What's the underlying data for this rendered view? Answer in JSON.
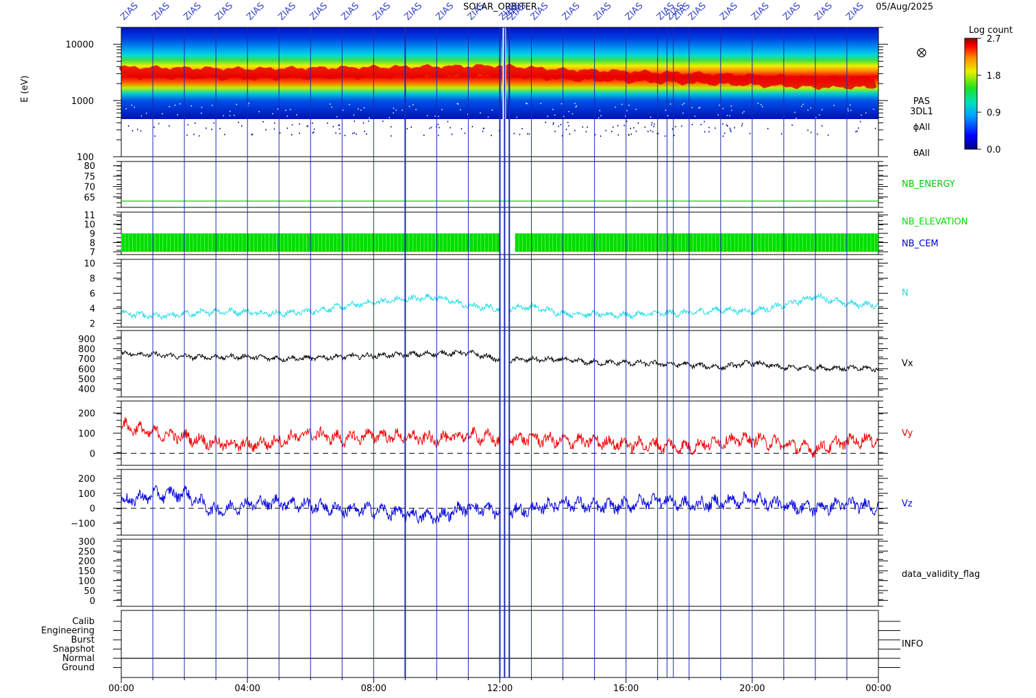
{
  "header": {
    "title": "SOLAR_ORBITER",
    "date": "05/Aug/2025",
    "event_label": "ZIAS",
    "event_times_hours": [
      0.0,
      1.0,
      2.0,
      3.0,
      4.0,
      5.0,
      6.0,
      7.0,
      8.0,
      9.0,
      10.0,
      11.0,
      12.0,
      12.15,
      12.3,
      13.0,
      14.0,
      15.0,
      16.0,
      17.0,
      17.3,
      17.5,
      18.0,
      19.0,
      20.0,
      21.0,
      22.0,
      23.0
    ]
  },
  "colorbar": {
    "title": "Log count",
    "ticks": [
      "2.7",
      "1.8",
      "0.9",
      "0.0"
    ],
    "min": 0.0,
    "max": 2.7
  },
  "xaxis": {
    "ticks": [
      "00:00",
      "04:00",
      "08:00",
      "12:00",
      "16:00",
      "20:00",
      "00:00"
    ],
    "range_hours": [
      0,
      24
    ]
  },
  "chart_data": [
    {
      "type": "heatmap",
      "panel": "spectrogram",
      "ylabel": "E (eV)",
      "yscale": "log",
      "ylim": [
        100,
        20000
      ],
      "yticks": [
        "10000",
        "1000",
        "100"
      ],
      "right_labels": [
        "PAS",
        "3DL1",
        "ϕAll",
        "θAll"
      ],
      "peak_energy_ev_by_hour": {
        "x": [
          0,
          2,
          4,
          6,
          8,
          10,
          12,
          14,
          16,
          18,
          20,
          22,
          24
        ],
        "y": [
          3200,
          3100,
          3000,
          3100,
          3200,
          3300,
          3400,
          2900,
          2700,
          2500,
          2300,
          2100,
          2100
        ]
      },
      "data_gaps_hours": [
        [
          12.0,
          12.25
        ]
      ]
    },
    {
      "type": "line",
      "panel": "nb_energy",
      "series": [
        {
          "name": "NB_ENERGY",
          "color": "#00cc00",
          "x": [
            0,
            24
          ],
          "y": [
            63,
            63
          ]
        }
      ],
      "yticks": [
        "80",
        "75",
        "70",
        "65"
      ],
      "ylim": [
        60,
        82
      ]
    },
    {
      "type": "line",
      "panel": "nb_elevation",
      "series": [
        {
          "name": "NB_ELEVATION",
          "color": "#00dd00",
          "min": 7,
          "max": 9
        },
        {
          "name": "NB_CEM",
          "color": "#0000cc"
        }
      ],
      "yticks": [
        "11",
        "10",
        "9",
        "8",
        "7"
      ],
      "ylim": [
        6.7,
        11.3
      ]
    },
    {
      "type": "line",
      "panel": "density",
      "series": [
        {
          "name": "N",
          "color": "#22dde8",
          "x": [
            0,
            1,
            2,
            3,
            4,
            5,
            6,
            7,
            8,
            9,
            10,
            11,
            12,
            13,
            14,
            15,
            16,
            17,
            18,
            19,
            20,
            21,
            22,
            23,
            24
          ],
          "y": [
            3.4,
            2.9,
            3.2,
            3.6,
            3.5,
            3.3,
            3.6,
            4.2,
            4.8,
            5.2,
            5.5,
            4.3,
            4.0,
            4.2,
            3.3,
            3.2,
            3.1,
            3.3,
            3.4,
            3.8,
            3.6,
            4.4,
            5.6,
            4.6,
            4.4
          ]
        }
      ],
      "yticks": [
        "10",
        "8",
        "6",
        "4",
        "2"
      ],
      "ylim": [
        1.5,
        10.5
      ]
    },
    {
      "type": "line",
      "panel": "vx",
      "series": [
        {
          "name": "Vx",
          "color": "#000000",
          "x": [
            0,
            1,
            2,
            3,
            4,
            5,
            6,
            7,
            8,
            9,
            10,
            11,
            12,
            13,
            14,
            15,
            16,
            17,
            18,
            19,
            20,
            21,
            22,
            23,
            24
          ],
          "y": [
            755,
            740,
            720,
            715,
            720,
            700,
            705,
            720,
            730,
            740,
            750,
            760,
            690,
            690,
            690,
            660,
            660,
            650,
            640,
            615,
            660,
            610,
            610,
            605,
            600
          ]
        }
      ],
      "yticks": [
        "900",
        "800",
        "700",
        "600",
        "500",
        "400"
      ],
      "ylim": [
        320,
        980
      ]
    },
    {
      "type": "line",
      "panel": "vy",
      "series": [
        {
          "name": "Vy",
          "color": "#ee0000",
          "x": [
            0,
            1,
            2,
            3,
            4,
            5,
            6,
            7,
            8,
            9,
            10,
            11,
            12,
            13,
            14,
            15,
            16,
            17,
            18,
            19,
            20,
            21,
            22,
            23,
            24
          ],
          "y": [
            140,
            100,
            80,
            50,
            40,
            60,
            100,
            70,
            90,
            80,
            70,
            90,
            70,
            75,
            60,
            60,
            45,
            40,
            30,
            60,
            70,
            45,
            20,
            60,
            70
          ]
        }
      ],
      "yticks": [
        "200",
        "100",
        "0"
      ],
      "ylim": [
        -60,
        260
      ],
      "reference_line": 0
    },
    {
      "type": "line",
      "panel": "vz",
      "series": [
        {
          "name": "Vz",
          "color": "#0000dd",
          "x": [
            0,
            1,
            2,
            3,
            4,
            5,
            6,
            7,
            8,
            9,
            10,
            11,
            12,
            13,
            14,
            15,
            16,
            17,
            18,
            19,
            20,
            21,
            22,
            23,
            24
          ],
          "y": [
            40,
            90,
            100,
            -20,
            30,
            40,
            20,
            -10,
            -10,
            -40,
            -60,
            10,
            -20,
            -10,
            40,
            10,
            20,
            60,
            20,
            40,
            60,
            20,
            0,
            30,
            10
          ]
        }
      ],
      "yticks": [
        "200",
        "100",
        "0",
        "−100"
      ],
      "ylim": [
        -180,
        260
      ],
      "reference_line": 0
    },
    {
      "type": "line",
      "panel": "validity",
      "series": [
        {
          "name": "data_validity_flag",
          "color": "#000000"
        }
      ],
      "yticks": [
        "300",
        "250",
        "200",
        "150",
        "100",
        "50",
        "0"
      ],
      "ylim": [
        -30,
        310
      ]
    },
    {
      "type": "line",
      "panel": "info",
      "series": [
        {
          "name": "INFO",
          "color": "#000000",
          "value": "Normal"
        }
      ],
      "yticks": [
        "Calib",
        "Engineering",
        "Burst",
        "Snapshot",
        "Normal",
        "Ground"
      ]
    }
  ]
}
